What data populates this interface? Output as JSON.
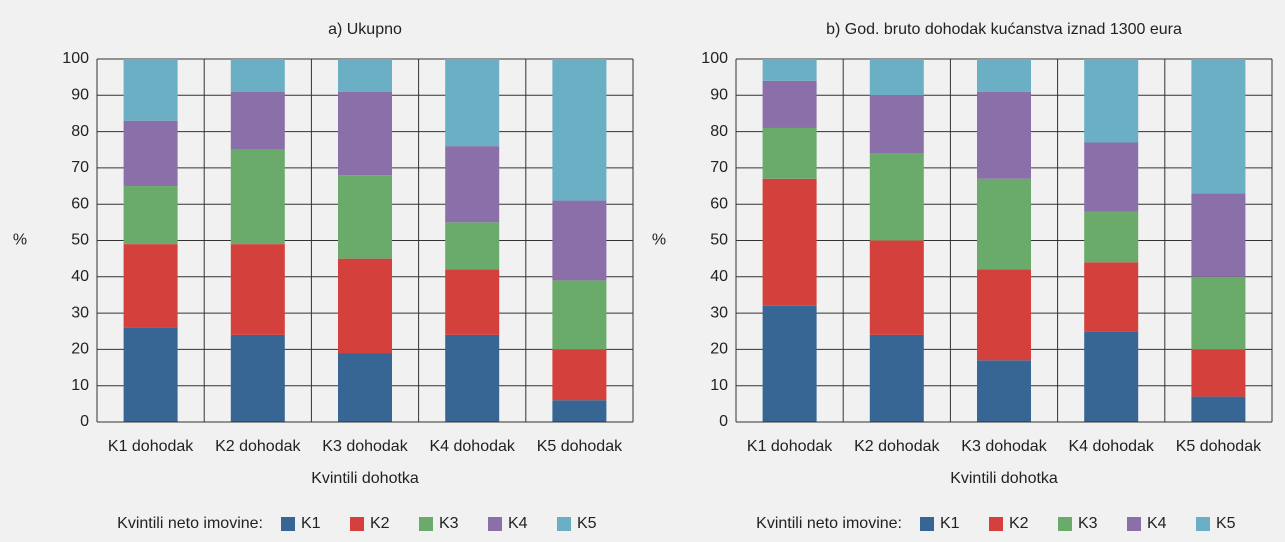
{
  "chart_data": [
    {
      "type": "bar",
      "stacked": true,
      "title": "a) Ukupno",
      "xlabel": "Kvintili dohotka",
      "ylabel": "%",
      "legend_title": "Kvintili neto imovine:",
      "categories": [
        "K1 dohodak",
        "K2 dohodak",
        "K3 dohodak",
        "K4 dohodak",
        "K5 dohodak"
      ],
      "series": [
        {
          "name": "K1",
          "color": "#386694",
          "values": [
            26,
            24,
            19,
            24,
            6
          ]
        },
        {
          "name": "K2",
          "color": "#d4403c",
          "values": [
            23,
            25,
            26,
            18,
            14
          ]
        },
        {
          "name": "K3",
          "color": "#6aab6c",
          "values": [
            16,
            26,
            23,
            13,
            19
          ]
        },
        {
          "name": "K4",
          "color": "#8b6fa8",
          "values": [
            18,
            16,
            23,
            21,
            22
          ]
        },
        {
          "name": "K5",
          "color": "#6aafc3",
          "values": [
            17,
            9,
            9,
            24,
            39
          ]
        }
      ],
      "ylim": [
        0,
        100
      ],
      "yticks": [
        0,
        10,
        20,
        30,
        40,
        50,
        60,
        70,
        80,
        90,
        100
      ],
      "grid": true
    },
    {
      "type": "bar",
      "stacked": true,
      "title": "b) God. bruto dohodak kućanstva iznad 1300 eura",
      "xlabel": "Kvintili dohotka",
      "ylabel": "%",
      "legend_title": "Kvintili neto imovine:",
      "categories": [
        "K1 dohodak",
        "K2 dohodak",
        "K3 dohodak",
        "K4 dohodak",
        "K5 dohodak"
      ],
      "series": [
        {
          "name": "K1",
          "color": "#386694",
          "values": [
            32,
            24,
            17,
            25,
            7
          ]
        },
        {
          "name": "K2",
          "color": "#d4403c",
          "values": [
            35,
            26,
            25,
            19,
            13
          ]
        },
        {
          "name": "K3",
          "color": "#6aab6c",
          "values": [
            14,
            24,
            25,
            14,
            20
          ]
        },
        {
          "name": "K4",
          "color": "#8b6fa8",
          "values": [
            13,
            16,
            24,
            19,
            23
          ]
        },
        {
          "name": "K5",
          "color": "#6aafc3",
          "values": [
            6,
            10,
            9,
            23,
            37
          ]
        }
      ],
      "ylim": [
        0,
        100
      ],
      "yticks": [
        0,
        10,
        20,
        30,
        40,
        50,
        60,
        70,
        80,
        90,
        100
      ],
      "grid": true
    }
  ]
}
